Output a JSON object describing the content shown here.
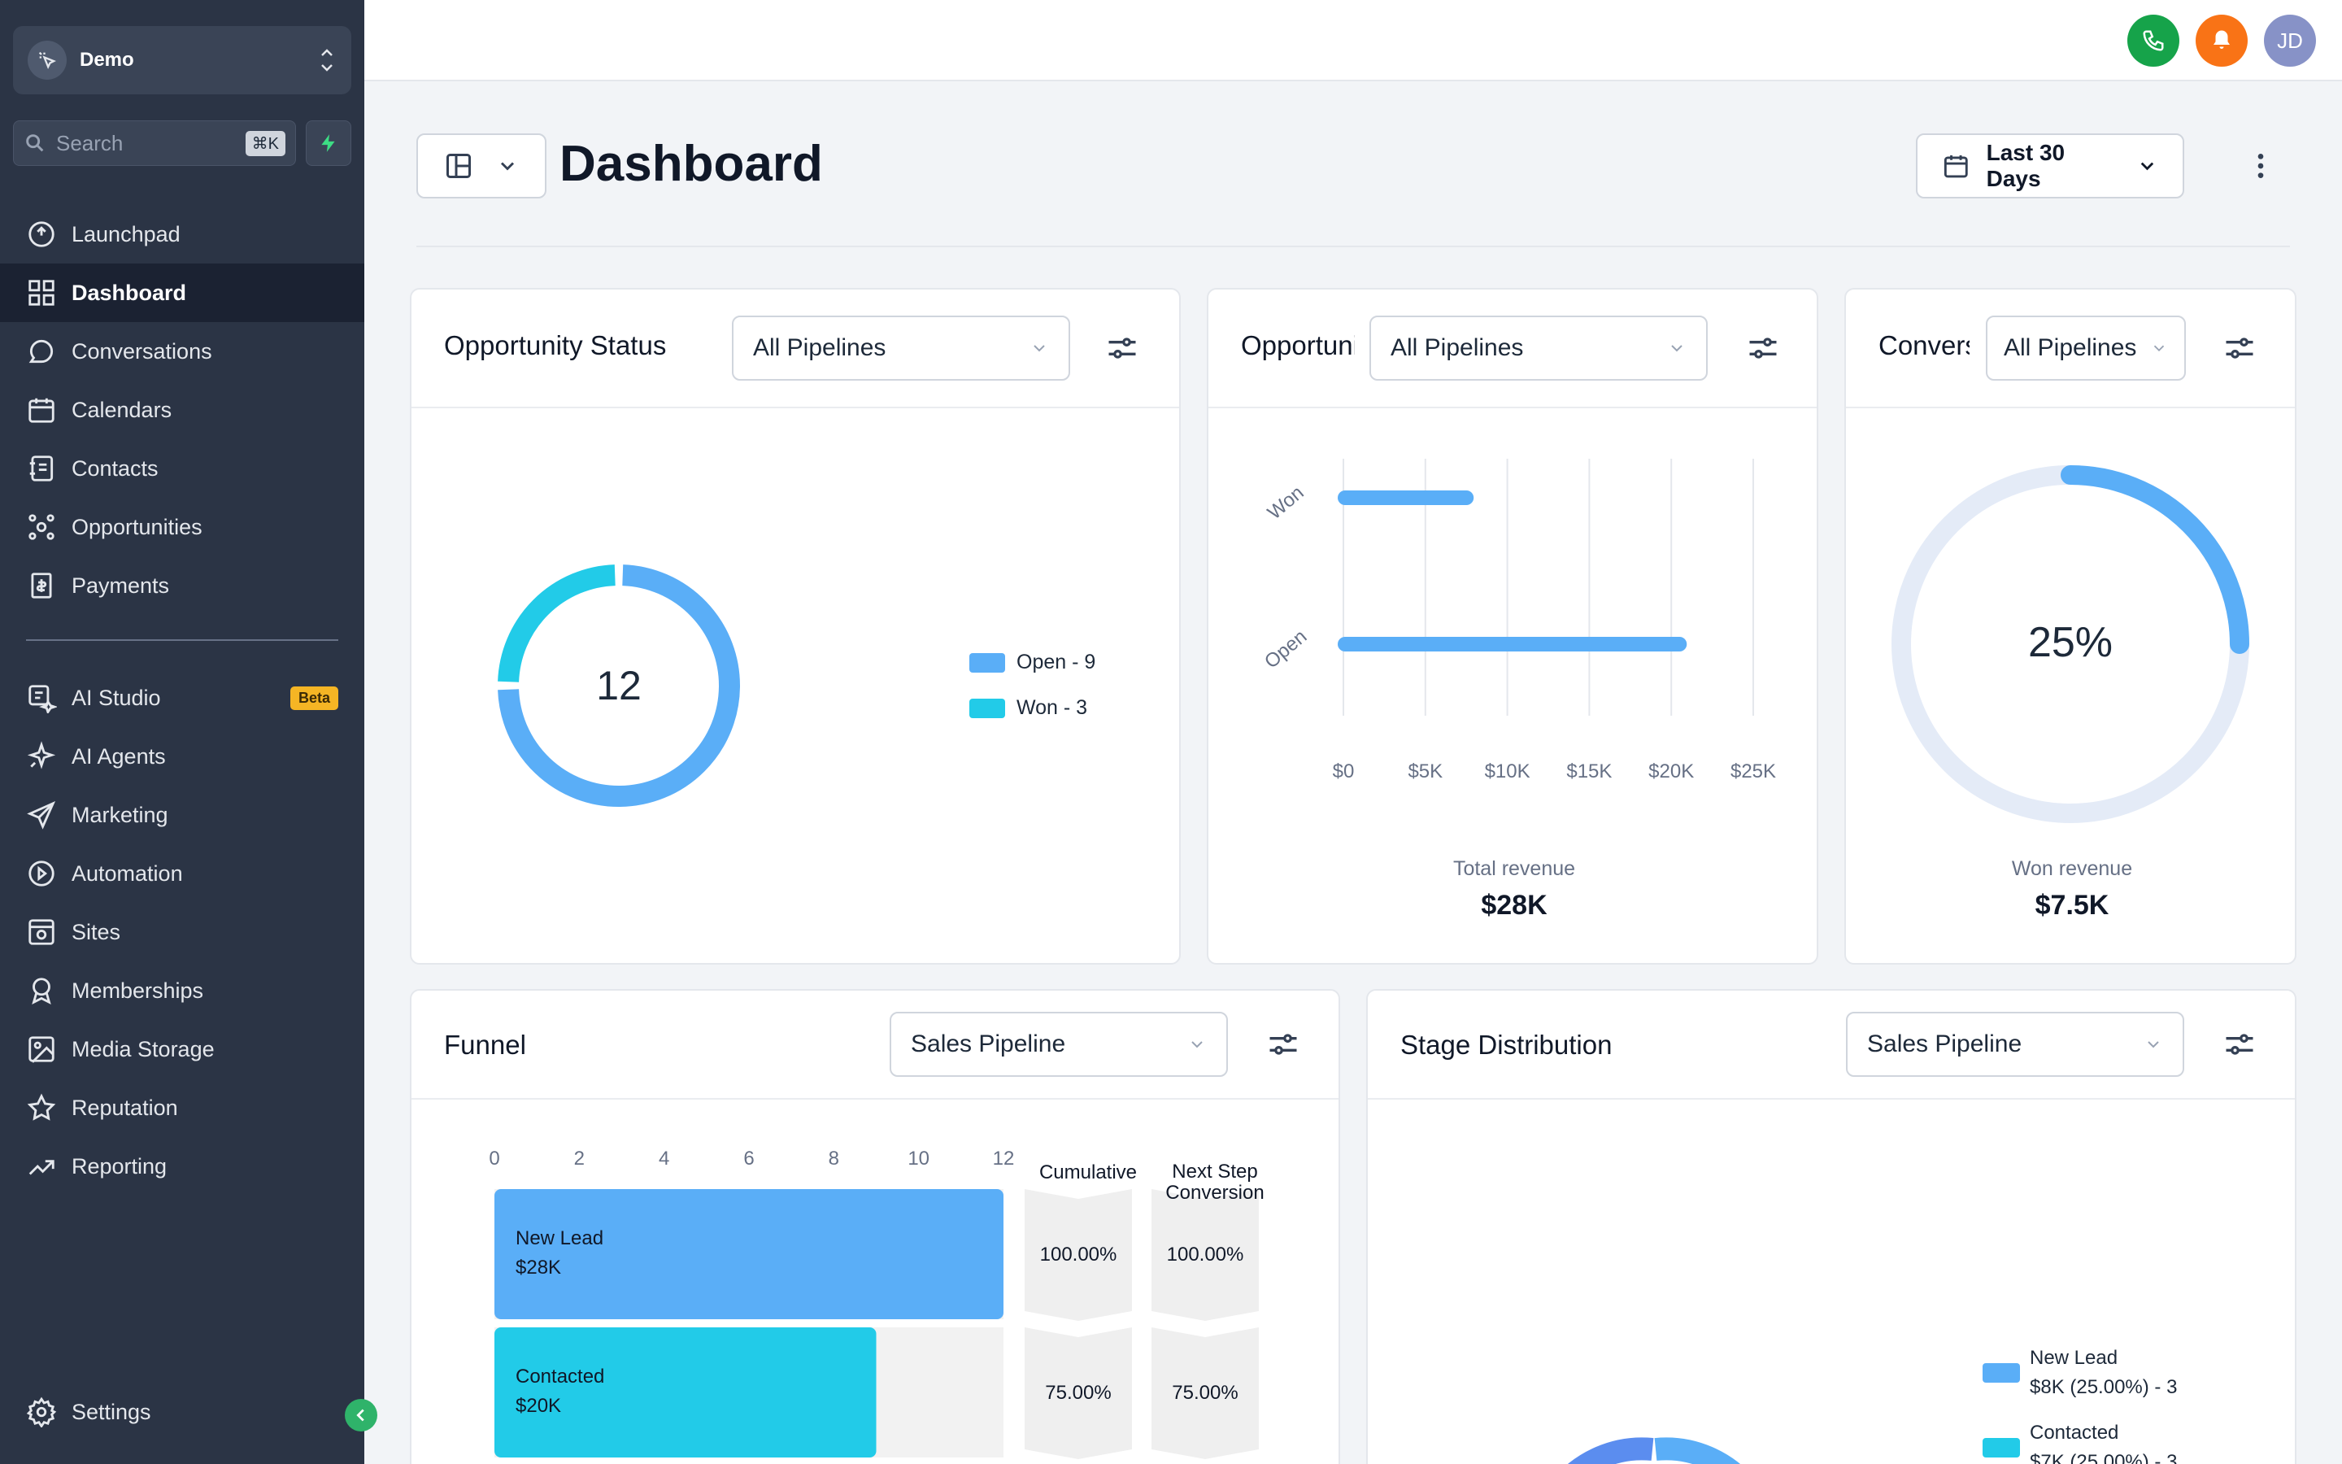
{
  "sidebar": {
    "workspace": "Demo",
    "search_placeholder": "Search",
    "search_shortcut": "⌘K",
    "items_top": [
      {
        "label": "Launchpad",
        "icon": "launchpad-icon"
      },
      {
        "label": "Dashboard",
        "icon": "dashboard-icon",
        "active": true
      },
      {
        "label": "Conversations",
        "icon": "chat-icon"
      },
      {
        "label": "Calendars",
        "icon": "calendar-icon"
      },
      {
        "label": "Contacts",
        "icon": "contacts-icon"
      },
      {
        "label": "Opportunities",
        "icon": "opportunities-icon"
      },
      {
        "label": "Payments",
        "icon": "payments-icon"
      }
    ],
    "items_bottom": [
      {
        "label": "AI Studio",
        "icon": "ai-studio-icon",
        "badge": "Beta"
      },
      {
        "label": "AI Agents",
        "icon": "sparkle-icon"
      },
      {
        "label": "Marketing",
        "icon": "send-icon"
      },
      {
        "label": "Automation",
        "icon": "automation-icon"
      },
      {
        "label": "Sites",
        "icon": "sites-icon"
      },
      {
        "label": "Memberships",
        "icon": "membership-icon"
      },
      {
        "label": "Media Storage",
        "icon": "image-icon"
      },
      {
        "label": "Reputation",
        "icon": "star-icon"
      },
      {
        "label": "Reporting",
        "icon": "trend-icon"
      }
    ],
    "settings": "Settings"
  },
  "topbar": {
    "avatar": "JD",
    "phone_color": "#16a34a",
    "bell_color": "#f97316",
    "avatar_color": "#8792c7"
  },
  "header": {
    "title": "Dashboard",
    "date_range": "Last 30 Days"
  },
  "cards": {
    "opportunity_status": {
      "title": "Opportunity Status",
      "filter": "All Pipelines",
      "center_value": "12",
      "legend": [
        {
          "label": "Open - 9",
          "color": "#5aaef7"
        },
        {
          "label": "Won - 3",
          "color": "#22cbe8"
        }
      ]
    },
    "opportunity_value": {
      "title": "Opportunity Value",
      "filter": "All Pipelines",
      "total_label": "Total revenue",
      "total_value": "$28K"
    },
    "conversion_rate": {
      "title": "Conversion Rate",
      "filter": "All Pipelines",
      "center_value": "25%",
      "won_label": "Won revenue",
      "won_value": "$7.5K"
    },
    "funnel": {
      "title": "Funnel",
      "filter": "Sales Pipeline",
      "col_cumulative": "Cumulative",
      "col_next_line1": "Next Step",
      "col_next_line2": "Conversion",
      "stages": [
        {
          "name": "New Lead",
          "value": "$28K",
          "count": 12,
          "cumulative": "100.00%",
          "next": "100.00%",
          "color": "#5aaef7"
        },
        {
          "name": "Contacted",
          "value": "$20K",
          "count": 9,
          "cumulative": "75.00%",
          "next": "75.00%",
          "color": "#22cbe8"
        }
      ]
    },
    "stage_distribution": {
      "title": "Stage Distribution",
      "filter": "Sales Pipeline",
      "legend": [
        {
          "line1": "New Lead",
          "line2": "$8K (25.00%) - 3",
          "color": "#5aaef7"
        },
        {
          "line1": "Contacted",
          "line2": "$7K (25.00%) - 3",
          "color": "#22cbe8"
        }
      ]
    }
  },
  "chart_data": [
    {
      "type": "pie",
      "title": "Opportunity Status",
      "categories": [
        "Open",
        "Won"
      ],
      "values": [
        9,
        3
      ],
      "center_label": "12",
      "legend": "right"
    },
    {
      "type": "bar",
      "orientation": "horizontal",
      "title": "Opportunity Value",
      "categories": [
        "Won",
        "Open"
      ],
      "values": [
        7500,
        20500
      ],
      "xlim": [
        0,
        25000
      ],
      "x_ticks": [
        "$0",
        "$5K",
        "$10K",
        "$15K",
        "$20K",
        "$25K"
      ],
      "grid": true
    },
    {
      "type": "pie",
      "title": "Conversion Rate",
      "values": [
        25,
        75
      ],
      "center_label": "25%"
    },
    {
      "type": "bar",
      "orientation": "horizontal",
      "title": "Funnel",
      "categories": [
        "New Lead",
        "Contacted"
      ],
      "values": [
        12,
        9
      ],
      "xlim": [
        0,
        12
      ],
      "x_ticks": [
        "0",
        "2",
        "4",
        "6",
        "8",
        "10",
        "12"
      ]
    }
  ]
}
